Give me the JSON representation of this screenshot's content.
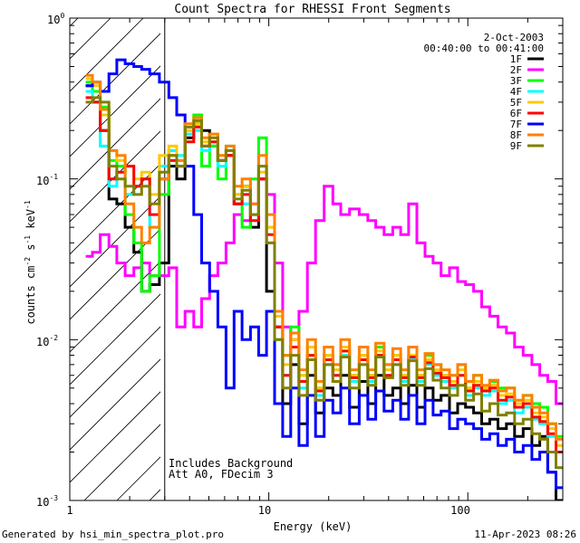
{
  "chart_data": {
    "type": "line",
    "title": "Count Spectra for RHESSI Front Segments",
    "xlabel": "Energy (keV)",
    "ylabel_parts": [
      "counts cm",
      "-2",
      " s",
      "-1",
      " keV",
      "-1"
    ],
    "xscale": "log",
    "yscale": "log",
    "xlim": [
      1,
      300
    ],
    "ylim": [
      0.001,
      1
    ],
    "x_ticks": [
      {
        "value": 1,
        "label": "1"
      },
      {
        "value": 10,
        "label": "10"
      },
      {
        "value": 100,
        "label": "100"
      }
    ],
    "y_ticks": [
      {
        "value": 1,
        "base": "10",
        "exp": "0"
      },
      {
        "value": 0.1,
        "base": "10",
        "exp": "-1"
      },
      {
        "value": 0.01,
        "base": "10",
        "exp": "-2"
      },
      {
        "value": 0.001,
        "base": "10",
        "exp": "-3"
      }
    ],
    "shaded_region": {
      "x_min": 1,
      "x_max": 3,
      "pattern": "diagonal hatching"
    },
    "legend": {
      "date": "2-Oct-2003",
      "time_range": "00:40:00 to 00:41:00",
      "placement": "top-right"
    },
    "annotations": [
      "Includes Background",
      "Att A0, FDecim 3"
    ],
    "series": [
      {
        "name": "1F",
        "color": "#000000",
        "x": [
          1.25,
          1.35,
          1.5,
          1.65,
          1.8,
          2.0,
          2.2,
          2.4,
          2.65,
          3.0,
          3.3,
          3.6,
          4.0,
          4.4,
          4.8,
          5.3,
          5.8,
          6.4,
          7.0,
          7.7,
          8.5,
          9.3,
          10.2,
          11.2,
          12.3,
          13.5,
          14.9,
          16.4,
          18,
          20,
          22,
          24,
          27,
          30,
          33,
          36,
          40,
          44,
          48,
          53,
          58,
          64,
          70,
          77,
          85,
          93,
          102,
          112,
          123,
          135,
          149,
          164,
          180,
          200,
          220,
          240,
          265,
          290
        ],
        "y": [
          0.38,
          0.3,
          0.2,
          0.075,
          0.07,
          0.05,
          0.035,
          0.02,
          0.022,
          0.03,
          0.12,
          0.1,
          0.18,
          0.22,
          0.2,
          0.16,
          0.13,
          0.14,
          0.07,
          0.09,
          0.05,
          0.1,
          0.02,
          0.012,
          0.004,
          0.007,
          0.003,
          0.006,
          0.0035,
          0.005,
          0.0045,
          0.006,
          0.0038,
          0.0055,
          0.004,
          0.006,
          0.0045,
          0.005,
          0.004,
          0.0052,
          0.0038,
          0.005,
          0.0042,
          0.0045,
          0.0035,
          0.004,
          0.0038,
          0.0035,
          0.003,
          0.0032,
          0.0028,
          0.003,
          0.0025,
          0.0028,
          0.0022,
          0.0025,
          0.0015,
          0.001
        ]
      },
      {
        "name": "2F",
        "color": "#ff00ff",
        "x": [
          1.25,
          1.35,
          1.5,
          1.65,
          1.8,
          2.0,
          2.2,
          2.4,
          2.65,
          3.0,
          3.3,
          3.6,
          4.0,
          4.4,
          4.8,
          5.3,
          5.8,
          6.4,
          7.0,
          7.7,
          8.5,
          9.3,
          10.2,
          11.2,
          12.3,
          13.5,
          14.9,
          16.4,
          18,
          20,
          22,
          24,
          27,
          30,
          33,
          36,
          40,
          44,
          48,
          53,
          58,
          64,
          70,
          77,
          85,
          93,
          102,
          112,
          123,
          135,
          149,
          164,
          180,
          200,
          220,
          240,
          265,
          290
        ],
        "y": [
          0.033,
          0.035,
          0.045,
          0.038,
          0.03,
          0.025,
          0.028,
          0.03,
          0.025,
          0.025,
          0.028,
          0.012,
          0.015,
          0.012,
          0.018,
          0.025,
          0.03,
          0.04,
          0.06,
          0.055,
          0.07,
          0.1,
          0.08,
          0.03,
          0.012,
          0.01,
          0.015,
          0.03,
          0.055,
          0.09,
          0.07,
          0.06,
          0.065,
          0.06,
          0.055,
          0.05,
          0.045,
          0.05,
          0.045,
          0.07,
          0.04,
          0.033,
          0.03,
          0.025,
          0.028,
          0.023,
          0.022,
          0.02,
          0.016,
          0.014,
          0.012,
          0.011,
          0.009,
          0.008,
          0.007,
          0.006,
          0.0055,
          0.004
        ]
      },
      {
        "name": "3F",
        "color": "#00ff00",
        "x": [
          1.25,
          1.35,
          1.5,
          1.65,
          1.8,
          2.0,
          2.2,
          2.4,
          2.65,
          3.0,
          3.3,
          3.6,
          4.0,
          4.4,
          4.8,
          5.3,
          5.8,
          6.4,
          7.0,
          7.7,
          8.5,
          9.3,
          10.2,
          11.2,
          12.3,
          13.5,
          14.9,
          16.4,
          18,
          20,
          22,
          24,
          27,
          30,
          33,
          36,
          40,
          44,
          48,
          53,
          58,
          64,
          70,
          77,
          85,
          93,
          102,
          112,
          123,
          135,
          149,
          164,
          180,
          200,
          220,
          240,
          265,
          290
        ],
        "y": [
          0.4,
          0.35,
          0.28,
          0.13,
          0.12,
          0.06,
          0.04,
          0.02,
          0.025,
          0.08,
          0.15,
          0.12,
          0.2,
          0.25,
          0.12,
          0.16,
          0.1,
          0.15,
          0.08,
          0.05,
          0.1,
          0.18,
          0.05,
          0.01,
          0.008,
          0.012,
          0.006,
          0.009,
          0.005,
          0.008,
          0.007,
          0.009,
          0.006,
          0.008,
          0.006,
          0.009,
          0.007,
          0.008,
          0.006,
          0.009,
          0.006,
          0.008,
          0.007,
          0.006,
          0.006,
          0.007,
          0.005,
          0.006,
          0.005,
          0.0055,
          0.005,
          0.005,
          0.004,
          0.0045,
          0.004,
          0.0038,
          0.003,
          0.0025
        ]
      },
      {
        "name": "4F",
        "color": "#00ffff",
        "x": [
          1.25,
          1.35,
          1.5,
          1.65,
          1.8,
          2.0,
          2.2,
          2.4,
          2.65,
          3.0,
          3.3,
          3.6,
          4.0,
          4.4,
          4.8,
          5.3,
          5.8,
          6.4,
          7.0,
          7.7,
          8.5,
          9.3,
          10.2,
          11.2,
          12.3,
          13.5,
          14.9,
          16.4,
          18,
          20,
          22,
          24,
          27,
          30,
          33,
          36,
          40,
          44,
          48,
          53,
          58,
          64,
          70,
          77,
          85,
          93,
          102,
          112,
          123,
          135,
          149,
          164,
          180,
          200,
          220,
          240,
          265,
          290
        ],
        "y": [
          0.35,
          0.3,
          0.16,
          0.09,
          0.11,
          0.08,
          0.09,
          0.1,
          0.05,
          0.12,
          0.15,
          0.14,
          0.19,
          0.2,
          0.15,
          0.17,
          0.12,
          0.16,
          0.08,
          0.07,
          0.06,
          0.12,
          0.04,
          0.012,
          0.006,
          0.009,
          0.005,
          0.008,
          0.0045,
          0.007,
          0.006,
          0.008,
          0.0055,
          0.007,
          0.0055,
          0.008,
          0.006,
          0.007,
          0.0055,
          0.0075,
          0.0055,
          0.007,
          0.006,
          0.0055,
          0.005,
          0.006,
          0.0045,
          0.005,
          0.0045,
          0.0048,
          0.004,
          0.0042,
          0.0035,
          0.0038,
          0.0032,
          0.003,
          0.0025,
          0.002
        ]
      },
      {
        "name": "5F",
        "color": "#ffc800",
        "x": [
          1.25,
          1.35,
          1.5,
          1.65,
          1.8,
          2.0,
          2.2,
          2.4,
          2.65,
          3.0,
          3.3,
          3.6,
          4.0,
          4.4,
          4.8,
          5.3,
          5.8,
          6.4,
          7.0,
          7.7,
          8.5,
          9.3,
          10.2,
          11.2,
          12.3,
          13.5,
          14.9,
          16.4,
          18,
          20,
          22,
          24,
          27,
          30,
          33,
          36,
          40,
          44,
          48,
          53,
          58,
          64,
          70,
          77,
          85,
          93,
          102,
          112,
          123,
          135,
          149,
          164,
          180,
          200,
          220,
          240,
          265,
          290
        ],
        "y": [
          0.42,
          0.38,
          0.25,
          0.15,
          0.13,
          0.12,
          0.1,
          0.11,
          0.08,
          0.14,
          0.16,
          0.13,
          0.2,
          0.22,
          0.17,
          0.18,
          0.14,
          0.15,
          0.08,
          0.09,
          0.06,
          0.11,
          0.05,
          0.014,
          0.007,
          0.01,
          0.006,
          0.009,
          0.005,
          0.008,
          0.0065,
          0.009,
          0.006,
          0.008,
          0.006,
          0.0085,
          0.0065,
          0.008,
          0.006,
          0.008,
          0.006,
          0.0075,
          0.0065,
          0.006,
          0.0055,
          0.0065,
          0.005,
          0.0055,
          0.005,
          0.0052,
          0.0045,
          0.0046,
          0.004,
          0.0042,
          0.0035,
          0.0033,
          0.0028,
          0.0022
        ]
      },
      {
        "name": "6F",
        "color": "#ff0000",
        "x": [
          1.25,
          1.35,
          1.5,
          1.65,
          1.8,
          2.0,
          2.2,
          2.4,
          2.65,
          3.0,
          3.3,
          3.6,
          4.0,
          4.4,
          4.8,
          5.3,
          5.8,
          6.4,
          7.0,
          7.7,
          8.5,
          9.3,
          10.2,
          11.2,
          12.3,
          13.5,
          14.9,
          16.4,
          18,
          20,
          22,
          24,
          27,
          30,
          33,
          36,
          40,
          44,
          48,
          53,
          58,
          64,
          70,
          77,
          85,
          93,
          102,
          112,
          123,
          135,
          149,
          164,
          180,
          200,
          220,
          240,
          265,
          290
        ],
        "y": [
          0.32,
          0.3,
          0.2,
          0.1,
          0.11,
          0.12,
          0.09,
          0.1,
          0.06,
          0.1,
          0.13,
          0.12,
          0.17,
          0.21,
          0.16,
          0.17,
          0.13,
          0.14,
          0.07,
          0.08,
          0.055,
          0.1,
          0.045,
          0.012,
          0.006,
          0.009,
          0.0055,
          0.008,
          0.0048,
          0.0075,
          0.006,
          0.0085,
          0.0058,
          0.0075,
          0.0058,
          0.008,
          0.006,
          0.0075,
          0.0058,
          0.0078,
          0.0058,
          0.0072,
          0.0062,
          0.0058,
          0.0052,
          0.006,
          0.0048,
          0.0052,
          0.0048,
          0.005,
          0.0042,
          0.0044,
          0.0038,
          0.004,
          0.0033,
          0.0031,
          0.0026,
          0.002
        ]
      },
      {
        "name": "7F",
        "color": "#0000ff",
        "x": [
          1.25,
          1.35,
          1.5,
          1.65,
          1.8,
          2.0,
          2.2,
          2.4,
          2.65,
          3.0,
          3.3,
          3.6,
          4.0,
          4.4,
          4.8,
          5.3,
          5.8,
          6.4,
          7.0,
          7.7,
          8.5,
          9.3,
          10.2,
          11.2,
          12.3,
          13.5,
          14.9,
          16.4,
          18,
          20,
          22,
          24,
          27,
          30,
          33,
          36,
          40,
          44,
          48,
          53,
          58,
          64,
          70,
          77,
          85,
          93,
          102,
          112,
          123,
          135,
          149,
          164,
          180,
          200,
          220,
          240,
          265,
          290
        ],
        "y": [
          0.38,
          0.4,
          0.35,
          0.45,
          0.55,
          0.52,
          0.5,
          0.48,
          0.45,
          0.4,
          0.32,
          0.25,
          0.12,
          0.06,
          0.03,
          0.02,
          0.012,
          0.005,
          0.015,
          0.01,
          0.012,
          0.008,
          0.015,
          0.004,
          0.0025,
          0.005,
          0.0022,
          0.0045,
          0.0025,
          0.0042,
          0.0035,
          0.005,
          0.003,
          0.0045,
          0.0032,
          0.0048,
          0.0036,
          0.0042,
          0.0032,
          0.0045,
          0.003,
          0.0042,
          0.0034,
          0.0036,
          0.0028,
          0.0032,
          0.003,
          0.0028,
          0.0024,
          0.0026,
          0.0022,
          0.0024,
          0.002,
          0.0022,
          0.0018,
          0.002,
          0.0015,
          0.0012
        ]
      },
      {
        "name": "8F",
        "color": "#ff8000",
        "x": [
          1.25,
          1.35,
          1.5,
          1.65,
          1.8,
          2.0,
          2.2,
          2.4,
          2.65,
          3.0,
          3.3,
          3.6,
          4.0,
          4.4,
          4.8,
          5.3,
          5.8,
          6.4,
          7.0,
          7.7,
          8.5,
          9.3,
          10.2,
          11.2,
          12.3,
          13.5,
          14.9,
          16.4,
          18,
          20,
          22,
          24,
          27,
          30,
          33,
          36,
          40,
          44,
          48,
          53,
          58,
          64,
          70,
          77,
          85,
          93,
          102,
          112,
          123,
          135,
          149,
          164,
          180,
          200,
          220,
          240,
          265,
          290
        ],
        "y": [
          0.44,
          0.4,
          0.27,
          0.15,
          0.14,
          0.07,
          0.05,
          0.04,
          0.05,
          0.1,
          0.14,
          0.13,
          0.22,
          0.24,
          0.18,
          0.19,
          0.14,
          0.16,
          0.09,
          0.1,
          0.07,
          0.14,
          0.06,
          0.015,
          0.008,
          0.011,
          0.0065,
          0.01,
          0.0055,
          0.009,
          0.007,
          0.01,
          0.0065,
          0.009,
          0.0065,
          0.0095,
          0.007,
          0.0088,
          0.0065,
          0.009,
          0.0065,
          0.0082,
          0.007,
          0.0065,
          0.006,
          0.007,
          0.0055,
          0.006,
          0.0052,
          0.0056,
          0.0048,
          0.005,
          0.0042,
          0.0045,
          0.0038,
          0.0035,
          0.003,
          0.0024
        ]
      },
      {
        "name": "9F",
        "color": "#808000",
        "x": [
          1.25,
          1.35,
          1.5,
          1.65,
          1.8,
          2.0,
          2.2,
          2.4,
          2.65,
          3.0,
          3.3,
          3.6,
          4.0,
          4.4,
          4.8,
          5.3,
          5.8,
          6.4,
          7.0,
          7.7,
          8.5,
          9.3,
          10.2,
          11.2,
          12.3,
          13.5,
          14.9,
          16.4,
          18,
          20,
          22,
          24,
          27,
          30,
          33,
          36,
          40,
          44,
          48,
          53,
          58,
          64,
          70,
          77,
          85,
          93,
          102,
          112,
          123,
          135,
          149,
          164,
          180,
          200,
          220,
          240,
          265,
          290
        ],
        "y": [
          0.3,
          0.32,
          0.3,
          0.12,
          0.1,
          0.09,
          0.08,
          0.09,
          0.07,
          0.11,
          0.14,
          0.12,
          0.21,
          0.23,
          0.16,
          0.18,
          0.13,
          0.15,
          0.075,
          0.085,
          0.06,
          0.12,
          0.04,
          0.01,
          0.005,
          0.008,
          0.0045,
          0.0075,
          0.0042,
          0.007,
          0.0055,
          0.0078,
          0.005,
          0.007,
          0.0052,
          0.0078,
          0.0058,
          0.007,
          0.0052,
          0.0074,
          0.0052,
          0.0066,
          0.0056,
          0.005,
          0.0045,
          0.0052,
          0.0042,
          0.0046,
          0.0036,
          0.004,
          0.0034,
          0.0035,
          0.003,
          0.0032,
          0.0026,
          0.0024,
          0.002,
          0.0016
        ]
      }
    ]
  },
  "footer": {
    "generated_by": "Generated by hsi_min_spectra_plot.pro",
    "timestamp": "11-Apr-2023 08:26"
  }
}
